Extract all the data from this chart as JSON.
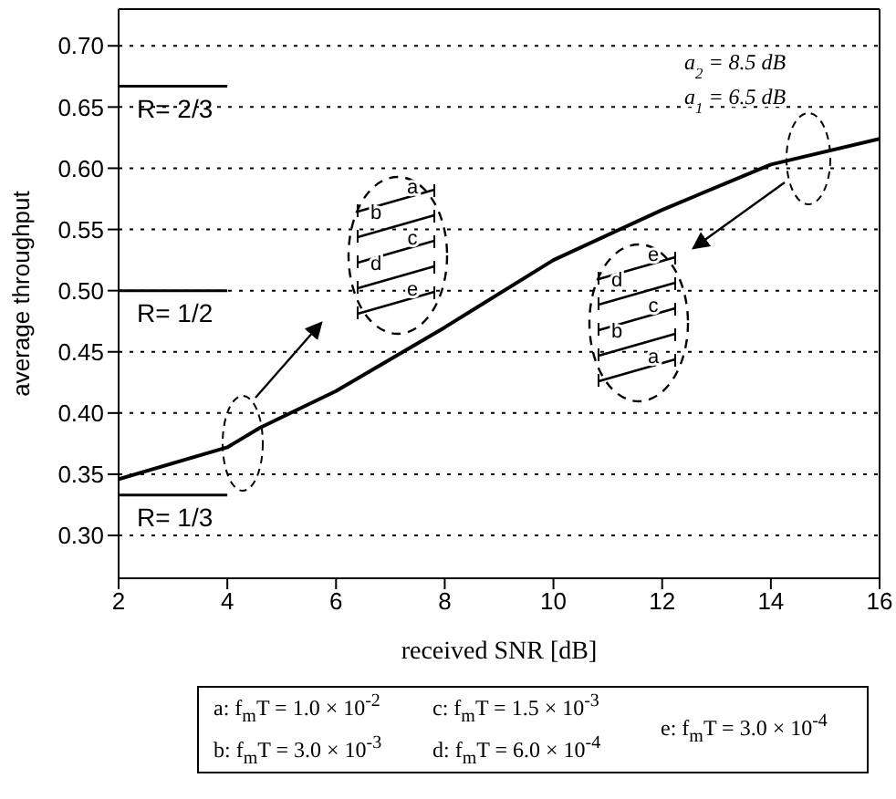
{
  "chart_data": {
    "type": "line",
    "xlabel": "received SNR [dB]",
    "ylabel": "average throughput",
    "xlim": [
      2,
      16
    ],
    "xticks": [
      2,
      4,
      6,
      8,
      10,
      12,
      14,
      16
    ],
    "ylim": [
      0.265,
      0.73
    ],
    "yticks": [
      {
        "value": 0.3,
        "label": "0.30"
      },
      0.35,
      {
        "value": 0.4,
        "label": "0.40"
      },
      0.45,
      {
        "value": 0.5,
        "label": "0.50"
      },
      0.55,
      {
        "value": 0.6,
        "label": "0.60"
      },
      0.65,
      {
        "value": 0.7,
        "label": "0.70"
      }
    ],
    "grid": "y",
    "legend": "left",
    "marker": "none",
    "line_style": "solid",
    "series": [
      {
        "color": "#000000",
        "x": [
          2,
          4,
          4.6,
          6,
          8,
          10,
          12,
          14,
          16
        ],
        "values": [
          0.346,
          0.372,
          0.388,
          0.418,
          0.47,
          0.525,
          0.566,
          0.603,
          0.624
        ]
      },
      {
        "name": "R= 2/3",
        "color": "#000000",
        "x": [
          2,
          4
        ],
        "values": [
          0.667,
          0.667
        ]
      },
      {
        "name": "R= 1/2",
        "color": "#000000",
        "x": [
          2,
          4
        ],
        "values": [
          0.5,
          0.5
        ]
      },
      {
        "name": "R= 1/3",
        "color": "#000000",
        "x": [
          2,
          4
        ],
        "values": [
          0.333,
          0.333
        ]
      }
    ],
    "annotations": [
      "a$_{2}$ = 8.5 dB",
      "a$_{1}$ = 6.5 dB",
      "a",
      "b",
      "c",
      "d",
      "e",
      "a: f$_{m}$T = 1.0 × 10$^{-2}$",
      "b: f$_{m}$T = 3.0 × 10$^{-3}$",
      "c: f$_{m}$T = 1.5 × 10$^{-3}$",
      "d: f$_{m}$T = 6.0 × 10$^{-4}$",
      "e: f$_{m}$T = 3.0 × 10$^{-4}$"
    ]
  }
}
